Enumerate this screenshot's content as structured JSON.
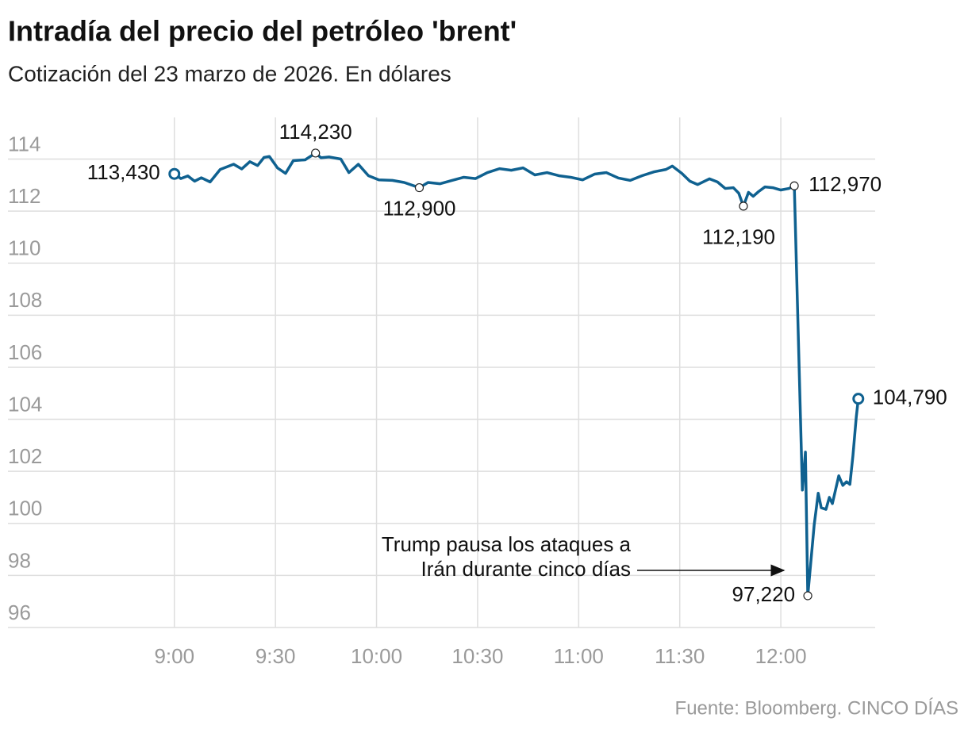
{
  "chart_data": {
    "type": "line",
    "title": "Intradía del precio del petróleo 'brent'",
    "subtitle": "Cotización del 23 marzo de 2026. En dólares",
    "source": "Fuente: Bloomberg. CINCO DÍAS",
    "annotation": [
      "Trump pausa los ataques a",
      "Irán durante cinco días"
    ],
    "color": "#0f6190",
    "x": [
      540,
      541.9,
      544,
      546,
      548,
      550.6,
      553.6,
      557.6,
      560,
      562.4,
      564.7,
      566.6,
      568.2,
      570.6,
      573,
      575.3,
      578.8,
      581.9,
      583.5,
      585.9,
      589.4,
      591.8,
      594.6,
      597.6,
      600.7,
      604.7,
      608.2,
      612.7,
      615.3,
      618.8,
      622.4,
      625.9,
      629.4,
      632.9,
      636.5,
      640,
      643.5,
      647,
      650.6,
      654.1,
      657.6,
      661.2,
      664.7,
      668.2,
      671.8,
      675.3,
      678.8,
      682.4,
      685.9,
      687.8,
      690.6,
      693,
      695.3,
      698.8,
      701.2,
      703.5,
      705.9,
      707.5,
      708.9,
      710.4,
      711.8,
      713.4,
      715.3,
      717.6,
      720,
      722.4,
      724,
      726.4,
      727.3,
      728,
      729.9,
      731.1,
      732,
      733.4,
      734.4,
      735.3,
      737.2,
      738.4,
      739.5,
      740.5,
      741.4,
      742.4,
      743
    ],
    "values": [
      113.43,
      113.25,
      113.35,
      113.15,
      113.28,
      113.12,
      113.6,
      113.8,
      113.62,
      113.9,
      113.75,
      114.06,
      114.1,
      113.66,
      113.45,
      113.94,
      113.97,
      114.23,
      114.05,
      114.08,
      114.0,
      113.48,
      113.8,
      113.36,
      113.2,
      113.18,
      113.1,
      112.9,
      113.1,
      113.05,
      113.18,
      113.3,
      113.25,
      113.48,
      113.63,
      113.57,
      113.66,
      113.39,
      113.48,
      113.36,
      113.3,
      113.2,
      113.42,
      113.48,
      113.27,
      113.18,
      113.36,
      113.51,
      113.6,
      113.73,
      113.45,
      113.15,
      113.02,
      113.24,
      113.12,
      112.87,
      112.9,
      112.69,
      112.19,
      112.72,
      112.57,
      112.75,
      112.93,
      112.9,
      112.81,
      112.87,
      112.97,
      101.28,
      102.74,
      97.22,
      99.94,
      101.16,
      100.6,
      100.54,
      101.0,
      100.76,
      101.83,
      101.46,
      101.6,
      101.5,
      102.6,
      104.1,
      104.79
    ],
    "value_labels": [
      "113,430",
      null,
      null,
      null,
      null,
      null,
      null,
      null,
      null,
      null,
      null,
      null,
      null,
      null,
      null,
      null,
      null,
      "114,230",
      null,
      null,
      null,
      null,
      null,
      null,
      null,
      null,
      null,
      "112,900",
      null,
      null,
      null,
      null,
      null,
      null,
      null,
      null,
      null,
      null,
      null,
      null,
      null,
      null,
      null,
      null,
      null,
      null,
      null,
      null,
      null,
      null,
      null,
      null,
      null,
      null,
      null,
      null,
      null,
      null,
      "112,190",
      null,
      null,
      null,
      null,
      null,
      null,
      null,
      "112,970",
      null,
      null,
      "97,220",
      null,
      null,
      null,
      null,
      null,
      null,
      null,
      null,
      null,
      null,
      null,
      null,
      "104,790"
    ],
    "xlim": [
      490.6,
      748
    ],
    "xticks": [
      {
        "value": 540,
        "label": "9:00"
      },
      {
        "value": 570,
        "label": "9:30"
      },
      {
        "value": 600,
        "label": "10:00"
      },
      {
        "value": 630,
        "label": "10:30"
      },
      {
        "value": 660,
        "label": "11:00"
      },
      {
        "value": 690,
        "label": "11:30"
      },
      {
        "value": 720,
        "label": "12:00"
      }
    ],
    "ylim": [
      96,
      115.6
    ],
    "yticks": [
      96,
      98,
      100,
      102,
      104,
      106,
      108,
      110,
      112,
      114
    ],
    "grid": true
  }
}
